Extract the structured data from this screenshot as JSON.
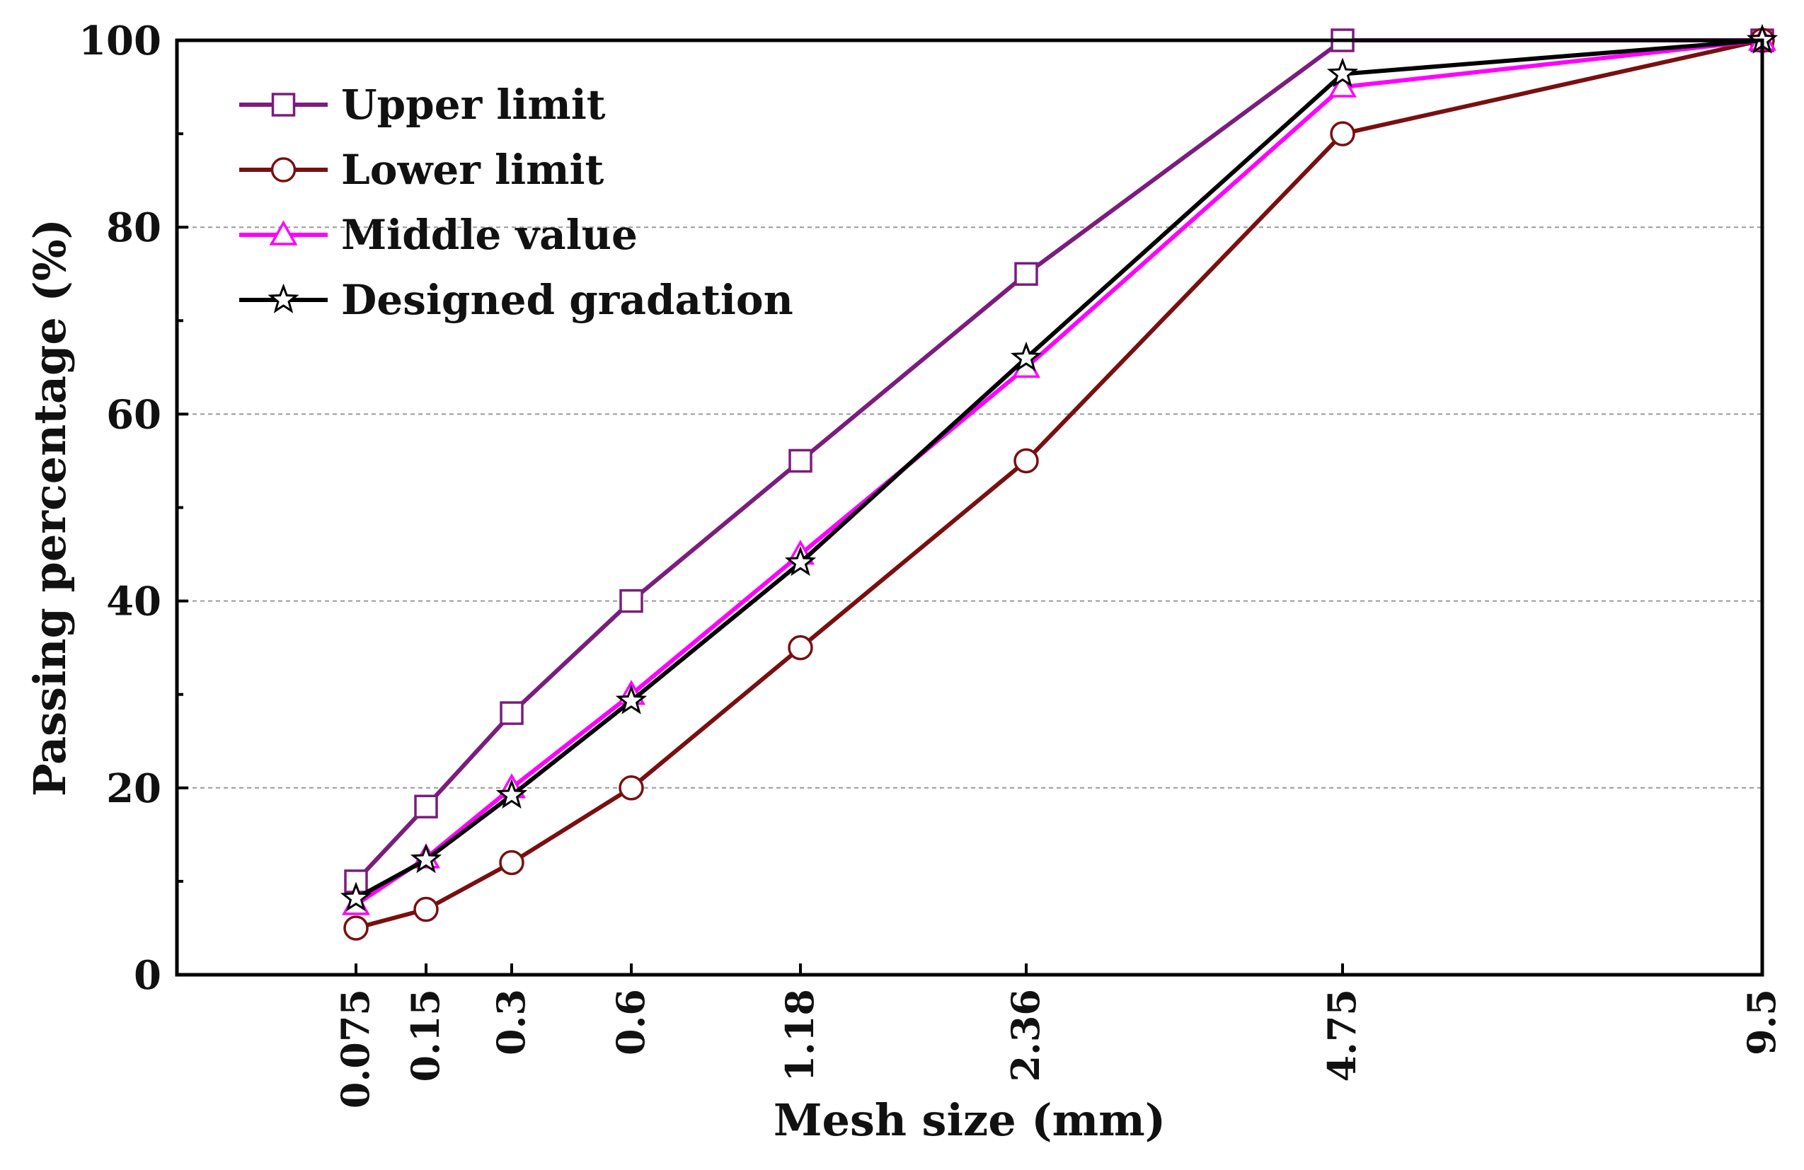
{
  "chart_data": {
    "type": "line",
    "title": "",
    "xlabel": "Mesh size (mm)",
    "ylabel": "Passing percentage (%)",
    "x_scale": "log-like (ordinal positions follow sieve sizes)",
    "categories": [
      "0.075",
      "0.15",
      "0.3",
      "0.6",
      "1.18",
      "2.36",
      "4.75",
      "9.5"
    ],
    "x_values": [
      0.075,
      0.15,
      0.3,
      0.6,
      1.18,
      2.36,
      4.75,
      9.5
    ],
    "ylim": [
      0,
      100
    ],
    "yticks": [
      "0",
      "20",
      "40",
      "60",
      "80",
      "100"
    ],
    "grid": true,
    "legend_position": "top-left",
    "series": [
      {
        "name": "Upper limit",
        "color": "#7B1C7E",
        "marker": "square",
        "values": [
          10,
          18,
          28,
          40,
          55,
          75,
          100,
          100
        ]
      },
      {
        "name": "Lower limit",
        "color": "#7A0F0F",
        "marker": "circle",
        "values": [
          5,
          7,
          12,
          20,
          35,
          55,
          90,
          100
        ]
      },
      {
        "name": "Middle value",
        "color": "#FF00FF",
        "marker": "triangle",
        "values": [
          7.5,
          12.5,
          20,
          30,
          45,
          65,
          95,
          100
        ]
      },
      {
        "name": "Designed gradation",
        "color": "#000000",
        "marker": "star",
        "values": [
          8.2,
          12.3,
          19.2,
          29.3,
          44.1,
          66.0,
          96.4,
          100
        ]
      }
    ]
  }
}
